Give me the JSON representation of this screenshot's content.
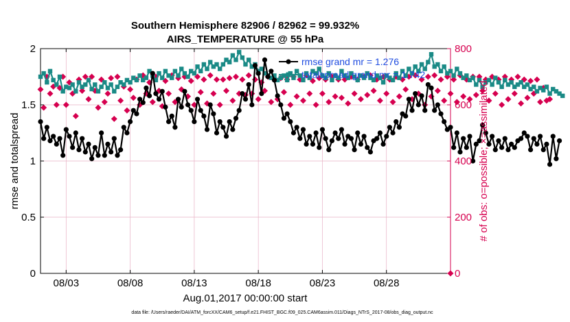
{
  "colors": {
    "rmse": "#000000",
    "spread": "#1a8a86",
    "obs": "#d6004f",
    "legend_text": "#1e4be0",
    "grid": "#e8b0c4"
  },
  "chart_data": {
    "type": "line",
    "title": "Southern Hemisphere 82906 / 82962 = 99.932%",
    "subtitle": "AIRS_TEMPERATURE @ 55 hPa",
    "ylabel": "rmse and totalspread",
    "ylabel_right": "# of obs: o=possible; ×=assimilated",
    "xlabel": "Aug.01,2017 00:00:00 start",
    "footer": "data file: /Users/raeder/DAI/ATM_forcXX/CAM6_setup/f.e21.FHIST_BGC.f09_025.CAM6assim.011/Diags_NTrS_2017-08/obs_diag_output.nc",
    "xlim": [
      1,
      33
    ],
    "ylim": [
      0,
      2
    ],
    "ylim_right": [
      0,
      800
    ],
    "x_ticks": [
      3,
      8,
      13,
      18,
      23,
      28
    ],
    "x_tick_labels": [
      "08/03",
      "08/08",
      "08/13",
      "08/18",
      "08/23",
      "08/28"
    ],
    "y_ticks": [
      0,
      0.5,
      1,
      1.5,
      2
    ],
    "y_tick_labels": [
      "0",
      "0.5",
      "1",
      "1.5",
      "2"
    ],
    "y_right_ticks": [
      0,
      200,
      400,
      600,
      800
    ],
    "y_right_tick_labels": [
      "0",
      "200",
      "400",
      "600",
      "800"
    ],
    "grid": true,
    "legend_position": "top-right",
    "series": [
      {
        "name": "rmse",
        "legend": "rmse grand mr = 1.276",
        "axis": "left",
        "x_start": 1.0,
        "x_step": 0.25,
        "values": [
          1.35,
          1.2,
          1.3,
          1.18,
          1.22,
          1.15,
          1.2,
          1.05,
          1.28,
          1.22,
          1.12,
          1.25,
          1.1,
          1.2,
          1.08,
          1.15,
          1.02,
          1.12,
          1.05,
          1.25,
          1.05,
          1.15,
          1.08,
          1.2,
          1.05,
          1.1,
          1.3,
          1.25,
          1.35,
          1.45,
          1.42,
          1.55,
          1.52,
          1.65,
          1.58,
          1.78,
          1.6,
          1.55,
          1.62,
          1.48,
          1.35,
          1.4,
          1.3,
          1.55,
          1.48,
          1.62,
          1.5,
          1.45,
          1.35,
          1.55,
          1.45,
          1.4,
          1.28,
          1.5,
          1.42,
          1.25,
          1.35,
          1.3,
          1.22,
          1.35,
          1.28,
          1.38,
          1.45,
          1.6,
          1.55,
          1.68,
          1.5,
          1.85,
          1.78,
          1.6,
          1.9,
          1.75,
          1.8,
          1.72,
          1.58,
          1.5,
          1.38,
          1.42,
          1.35,
          1.25,
          1.3,
          1.2,
          1.28,
          1.15,
          1.22,
          1.15,
          1.25,
          1.12,
          1.28,
          1.2,
          1.1,
          1.18,
          1.25,
          1.2,
          1.28,
          1.15,
          1.22,
          1.2,
          1.1,
          1.25,
          1.15,
          1.22,
          1.12,
          1.08,
          1.18,
          1.2,
          1.25,
          1.15,
          1.22,
          1.3,
          1.25,
          1.35,
          1.3,
          1.42,
          1.4,
          1.55,
          1.45,
          1.6,
          1.5,
          1.58,
          1.45,
          1.68,
          1.65,
          1.45,
          1.5,
          1.42,
          1.35,
          1.28,
          1.3,
          1.12,
          1.25,
          1.08,
          1.2,
          1.12,
          1.22,
          1.0,
          1.15,
          1.18,
          1.32,
          1.25,
          1.15,
          1.22,
          1.1,
          1.18,
          1.12,
          1.2,
          1.1,
          1.15,
          1.12,
          1.18,
          1.2,
          1.25,
          1.22,
          1.1,
          1.2,
          1.15,
          1.22,
          1.1,
          1.15,
          0.97,
          1.22,
          1.02,
          1.18
        ]
      },
      {
        "name": "totalspread",
        "legend": "totalspread grand mr = 1.742",
        "axis": "left",
        "x_start": 1.0,
        "x_step": 0.25,
        "values": [
          1.75,
          1.78,
          1.7,
          1.8,
          1.72,
          1.68,
          1.75,
          1.62,
          1.66,
          1.65,
          1.68,
          1.62,
          1.7,
          1.66,
          1.68,
          1.72,
          1.64,
          1.68,
          1.62,
          1.66,
          1.7,
          1.65,
          1.68,
          1.62,
          1.66,
          1.7,
          1.68,
          1.72,
          1.7,
          1.74,
          1.72,
          1.76,
          1.72,
          1.74,
          1.8,
          1.76,
          1.72,
          1.78,
          1.74,
          1.8,
          1.76,
          1.74,
          1.8,
          1.76,
          1.82,
          1.78,
          1.75,
          1.8,
          1.78,
          1.84,
          1.8,
          1.86,
          1.82,
          1.88,
          1.84,
          1.86,
          1.82,
          1.86,
          1.9,
          1.88,
          1.94,
          1.9,
          1.97,
          1.92,
          1.86,
          1.9,
          1.84,
          1.86,
          1.8,
          1.82,
          1.78,
          1.76,
          1.74,
          1.76,
          1.72,
          1.74,
          1.76,
          1.72,
          1.78,
          1.74,
          1.8,
          1.76,
          1.72,
          1.78,
          1.74,
          1.8,
          1.78,
          1.82,
          1.76,
          1.74,
          1.78,
          1.72,
          1.76,
          1.74,
          1.8,
          1.76,
          1.74,
          1.78,
          1.75,
          1.72,
          1.76,
          1.74,
          1.78,
          1.74,
          1.72,
          1.76,
          1.74,
          1.7,
          1.76,
          1.74,
          1.72,
          1.78,
          1.74,
          1.8,
          1.76,
          1.82,
          1.78,
          1.84,
          1.8,
          1.86,
          1.82,
          1.88,
          1.95,
          1.84,
          1.86,
          1.8,
          1.84,
          1.78,
          1.8,
          1.76,
          1.82,
          1.78,
          1.74,
          1.76,
          1.72,
          1.74,
          1.68,
          1.72,
          1.66,
          1.7,
          1.72,
          1.68,
          1.74,
          1.7,
          1.66,
          1.72,
          1.68,
          1.7,
          1.66,
          1.68,
          1.7,
          1.66,
          1.68,
          1.64,
          1.66,
          1.62,
          1.65,
          1.63,
          1.66,
          1.6,
          1.64,
          1.62,
          1.6,
          1.58
        ]
      },
      {
        "name": "obs_possible",
        "axis": "right",
        "x_start": 1.0,
        "x_step": 0.25,
        "values": [
          655,
          590,
          700,
          640,
          665,
          600,
          660,
          700,
          600,
          680,
          640,
          560,
          690,
          650,
          700,
          620,
          700,
          650,
          590,
          690,
          610,
          640,
          695,
          550,
          700,
          615,
          665,
          580,
          655,
          625,
          690,
          600,
          705,
          640,
          680,
          610,
          700,
          650,
          595,
          685,
          640,
          705,
          610,
          695,
          655,
          700,
          630,
          685,
          600,
          700,
          645,
          690,
          605,
          705,
          640,
          690,
          600,
          690,
          650,
          695,
          615,
          700,
          640,
          690,
          635,
          705,
          640,
          690,
          620,
          680,
          650,
          700,
          610,
          690,
          620,
          695,
          645,
          690,
          600,
          700,
          630,
          690,
          615,
          705,
          640,
          685,
          600,
          695,
          640,
          690,
          610,
          700,
          630,
          690,
          625,
          690,
          605,
          700,
          640,
          690,
          620,
          700,
          635,
          705,
          650,
          690,
          615,
          700,
          640,
          690,
          610,
          700,
          630,
          690,
          655,
          700,
          620,
          705,
          640,
          690,
          600,
          700,
          630,
          705,
          650,
          690,
          615,
          700,
          640,
          690,
          610,
          705,
          630,
          690,
          620,
          700,
          635,
          700,
          650,
          690,
          615,
          700,
          640,
          690,
          600,
          700,
          620,
          690,
          640,
          700,
          605,
          690,
          625,
          685,
          640,
          690,
          610,
          660,
          615,
          620
        ]
      }
    ]
  }
}
